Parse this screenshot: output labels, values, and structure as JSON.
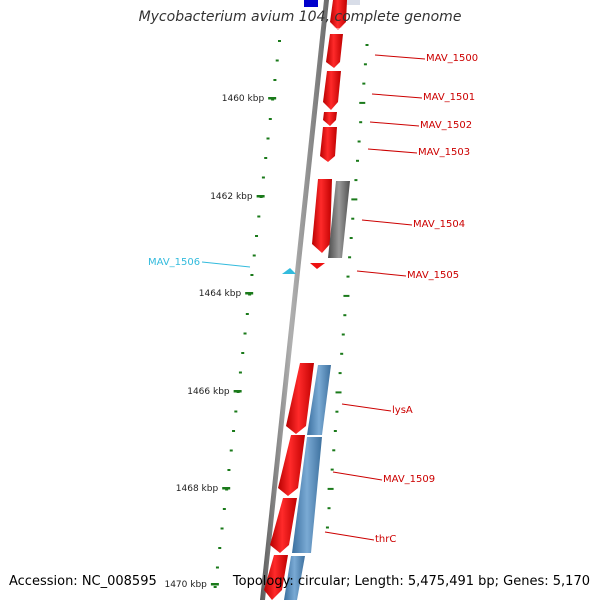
{
  "title": "Mycobacterium avium 104, complete genome",
  "footer": {
    "accession": "Accession: NC_008595",
    "summary": "Topology: circular; Length: 5,475,491 bp; Genes: 5,170"
  },
  "ruler_labels": [
    "1460 kbp",
    "1462 kbp",
    "1464 kbp",
    "1466 kbp",
    "1468 kbp",
    "1470 kbp"
  ],
  "gene_labels": [
    {
      "text": "MAV_1500",
      "kind": "red"
    },
    {
      "text": "MAV_1501",
      "kind": "red"
    },
    {
      "text": "MAV_1502",
      "kind": "red"
    },
    {
      "text": "MAV_1503",
      "kind": "red"
    },
    {
      "text": "MAV_1504",
      "kind": "red"
    },
    {
      "text": "MAV_1505",
      "kind": "red"
    },
    {
      "text": "MAV_1506",
      "kind": "cyan"
    },
    {
      "text": "lysA",
      "kind": "red"
    },
    {
      "text": "MAV_1509",
      "kind": "red"
    },
    {
      "text": "thrC",
      "kind": "red"
    }
  ],
  "colors": {
    "gene_red": "#ee1111",
    "gene_label_red": "#cc0000",
    "gene_label_cyan": "#33bbdd",
    "ruler_green": "#1a7a1a",
    "backbone_gray": "#888888",
    "rna_blue": "#5588bb",
    "pseudo_gray": "#707070",
    "top_blue": "#0000cc"
  }
}
